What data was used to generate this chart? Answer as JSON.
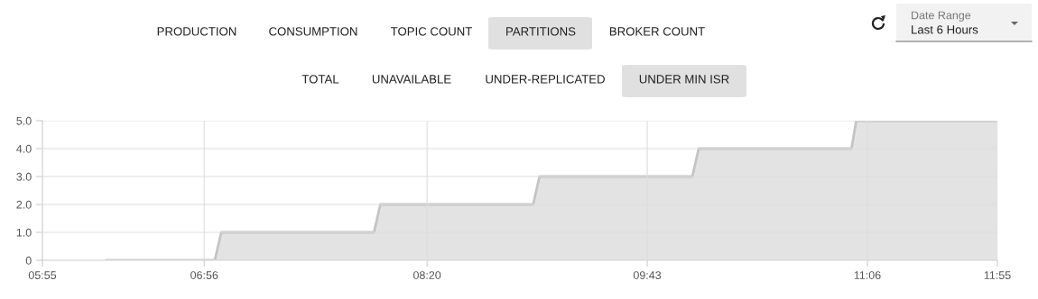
{
  "chart_data": {
    "type": "area",
    "x": [
      6.32,
      7.0,
      7.04,
      8.0,
      8.04,
      9.0,
      9.04,
      10.0,
      10.04,
      11.0,
      11.03,
      11.9167
    ],
    "series": [
      {
        "color": "#c4c4c4",
        "values": [
          0,
          0,
          1,
          1,
          2,
          2,
          3,
          3,
          4,
          4,
          5,
          5
        ]
      }
    ],
    "xlim": [
      5.9167,
      11.9167
    ],
    "xticks": [
      {
        "value": 5.9167,
        "label": "05:55"
      },
      {
        "value": 6.9333,
        "label": "06:56"
      },
      {
        "value": 8.3333,
        "label": "08:20"
      },
      {
        "value": 9.7167,
        "label": "09:43"
      },
      {
        "value": 11.1,
        "label": "11:06"
      },
      {
        "value": 11.9167,
        "label": "11:55"
      }
    ],
    "ylim": [
      0,
      5
    ],
    "yticks": [
      0,
      {
        "value": 1,
        "label": "1.0"
      },
      {
        "value": 2,
        "label": "2.0"
      },
      {
        "value": 3,
        "label": "3.0"
      },
      {
        "value": 4,
        "label": "4.0"
      },
      {
        "value": 5,
        "label": "5.0"
      }
    ],
    "grid": true,
    "legend": false,
    "annotations": [
      "PRODUCTION",
      "CONSUMPTION",
      "TOPIC COUNT",
      "PARTITIONS",
      "BROKER COUNT",
      "TOTAL",
      "UNAVAILABLE",
      "UNDER-REPLICATED",
      "UNDER MIN ISR",
      "Date Range",
      "Last 6 Hours"
    ]
  }
}
